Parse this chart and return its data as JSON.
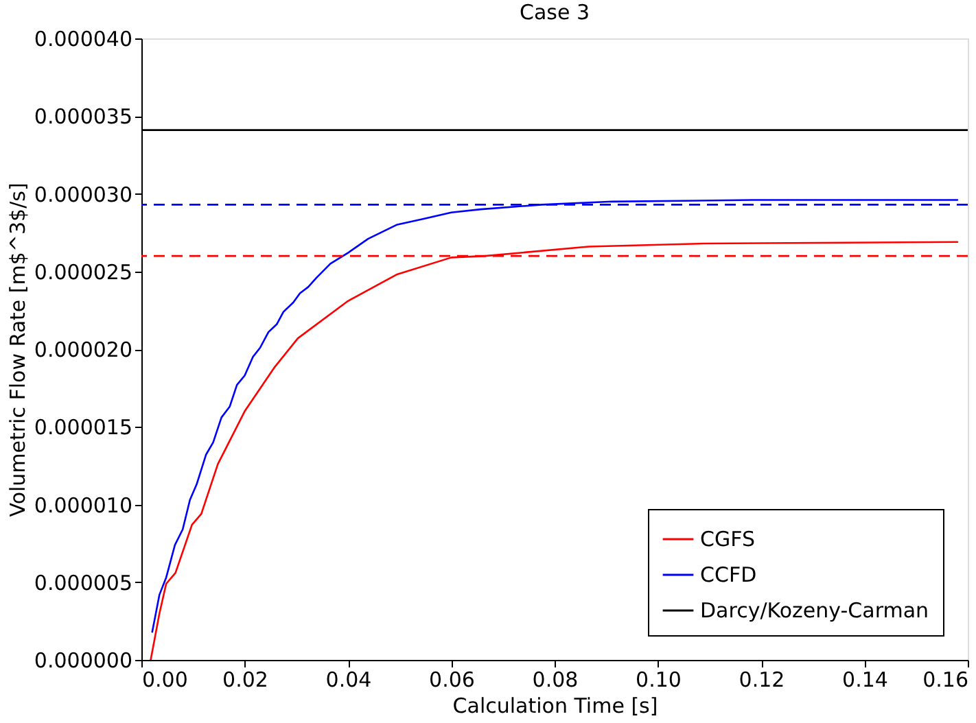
{
  "chart_data": {
    "type": "line",
    "title": "Case 3",
    "xlabel": "Calculation Time [s]",
    "ylabel": "Volumetric Flow Rate [m$^3$/s]",
    "xlim": [
      0,
      0.16
    ],
    "ylim": [
      0,
      4e-05
    ],
    "xticks": [
      {
        "value": 0,
        "label": "0.00"
      },
      {
        "value": 0.02,
        "label": "0.02"
      },
      {
        "value": 0.04,
        "label": "0.04"
      },
      {
        "value": 0.06,
        "label": "0.06"
      },
      {
        "value": 0.08,
        "label": "0.08"
      },
      {
        "value": 0.1,
        "label": "0.10"
      },
      {
        "value": 0.12,
        "label": "0.12"
      },
      {
        "value": 0.14,
        "label": "0.14"
      },
      {
        "value": 0.16,
        "label": "0.16"
      }
    ],
    "yticks": [
      {
        "value": 0,
        "label": "0.000000"
      },
      {
        "value": 5e-06,
        "label": "0.000005"
      },
      {
        "value": 1e-05,
        "label": "0.000010"
      },
      {
        "value": 1.5e-05,
        "label": "0.000015"
      },
      {
        "value": 2e-05,
        "label": "0.000020"
      },
      {
        "value": 2.5e-05,
        "label": "0.000025"
      },
      {
        "value": 3e-05,
        "label": "0.000030"
      },
      {
        "value": 3.5e-05,
        "label": "0.000035"
      },
      {
        "value": 4e-05,
        "label": "0.000040"
      }
    ],
    "grid": false,
    "legend": "bottom right",
    "line_style": "solid",
    "series": [
      {
        "name": "CGFS",
        "color": "#ff0000",
        "x": [
          0.0018,
          0.0035,
          0.0048,
          0.0066,
          0.0098,
          0.0116,
          0.0148,
          0.02,
          0.0257,
          0.0303,
          0.04,
          0.0494,
          0.06,
          0.0666,
          0.0866,
          0.109,
          0.158
        ],
        "values": [
          0,
          3e-06,
          4.9e-06,
          5.6e-06,
          8.7e-06,
          9.4e-06,
          1.26e-05,
          1.6e-05,
          1.88e-05,
          2.07e-05,
          2.31e-05,
          2.48e-05,
          2.59e-05,
          2.6e-05,
          2.66e-05,
          2.68e-05,
          2.69e-05
        ]
      },
      {
        "name": "CCFD",
        "color": "#0000ff",
        "x": [
          0.0021,
          0.0035,
          0.0048,
          0.0065,
          0.008,
          0.0094,
          0.0107,
          0.0125,
          0.0139,
          0.0155,
          0.0171,
          0.0185,
          0.02,
          0.0216,
          0.023,
          0.0246,
          0.0262,
          0.0275,
          0.0294,
          0.0307,
          0.0323,
          0.0339,
          0.0366,
          0.04,
          0.0439,
          0.0494,
          0.0548,
          0.06,
          0.0657,
          0.0775,
          0.0912,
          0.1184,
          0.158
        ],
        "values": [
          1.8e-06,
          4.2e-06,
          5.3e-06,
          7.4e-06,
          8.4e-06,
          1.03e-05,
          1.13e-05,
          1.32e-05,
          1.4e-05,
          1.56e-05,
          1.63e-05,
          1.77e-05,
          1.83e-05,
          1.95e-05,
          2.01e-05,
          2.11e-05,
          2.16e-05,
          2.24e-05,
          2.3e-05,
          2.36e-05,
          2.4e-05,
          2.46e-05,
          2.55e-05,
          2.62e-05,
          2.71e-05,
          2.8e-05,
          2.84e-05,
          2.88e-05,
          2.9e-05,
          2.93e-05,
          2.95e-05,
          2.96e-05,
          2.96e-05
        ]
      },
      {
        "name": "Darcy/Kozeny-Carman",
        "color": "#000000",
        "x": [
          0,
          0.16
        ],
        "values": [
          3.41e-05,
          3.41e-05
        ]
      }
    ],
    "ref_lines": [
      {
        "axis": "y",
        "value": 2.93e-05,
        "color": "#0000ff",
        "line_style": "dashed"
      },
      {
        "axis": "y",
        "value": 2.6e-05,
        "color": "#ff0000",
        "line_style": "dashed"
      }
    ]
  }
}
